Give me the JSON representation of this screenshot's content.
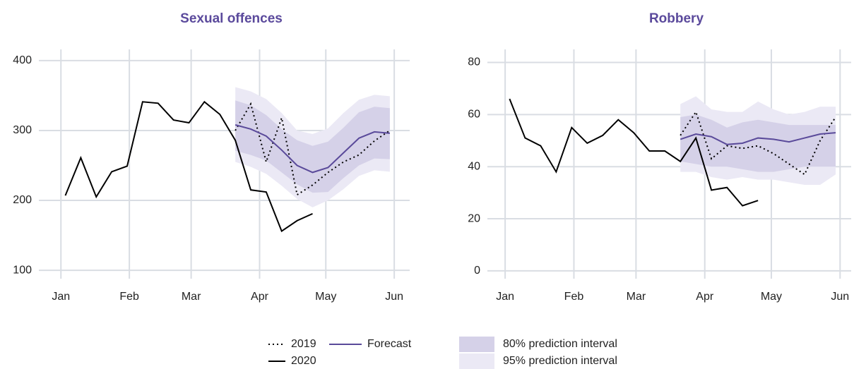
{
  "chart_data": [
    {
      "type": "line",
      "title": "Sexual offences",
      "xlim": [
        -9,
        159
      ],
      "xticks": [
        {
          "value": 1,
          "label": "Jan"
        },
        {
          "value": 32,
          "label": "Feb"
        },
        {
          "value": 60,
          "label": "Mar"
        },
        {
          "value": 91,
          "label": "Apr"
        },
        {
          "value": 121,
          "label": "May"
        },
        {
          "value": 152,
          "label": "Jun"
        }
      ],
      "ylim": [
        88,
        416
      ],
      "yticks": [
        100,
        200,
        300,
        400
      ],
      "grid": true,
      "bands": [
        {
          "name": "95% prediction interval",
          "color": "#ebe9f5",
          "x": [
            80,
            87,
            94,
            101,
            108,
            115,
            122,
            129,
            136,
            143,
            150
          ],
          "lower": [
            255,
            248,
            238,
            221,
            202,
            190,
            200,
            216,
            235,
            243,
            241
          ],
          "upper": [
            362,
            356,
            345,
            325,
            300,
            295,
            303,
            325,
            344,
            351,
            349
          ]
        },
        {
          "name": "80% prediction interval",
          "color": "#d5d1e8",
          "x": [
            80,
            87,
            94,
            101,
            108,
            115,
            122,
            129,
            136,
            143,
            150
          ],
          "lower": [
            271,
            265,
            257,
            240,
            223,
            211,
            212,
            232,
            250,
            260,
            259
          ],
          "upper": [
            343,
            336,
            322,
            302,
            286,
            278,
            284,
            304,
            326,
            334,
            332
          ]
        }
      ],
      "series": [
        {
          "name": "2019",
          "color": "#000000",
          "style": "dotted",
          "x": [
            80,
            87,
            94,
            101,
            108,
            115,
            122,
            129,
            136,
            143,
            150
          ],
          "values": [
            300,
            338,
            255,
            318,
            208,
            222,
            240,
            255,
            265,
            285,
            300
          ]
        },
        {
          "name": "2020",
          "color": "#000000",
          "style": "solid",
          "x": [
            3,
            10,
            17,
            24,
            31,
            38,
            45,
            52,
            59,
            66,
            73,
            80,
            87,
            94,
            101,
            108,
            115
          ],
          "values": [
            207,
            261,
            205,
            241,
            249,
            341,
            339,
            315,
            311,
            341,
            323,
            286,
            215,
            212,
            156,
            171,
            181
          ]
        },
        {
          "name": "Forecast",
          "color": "#5a4a9a",
          "style": "solid",
          "x": [
            80,
            87,
            94,
            101,
            108,
            115,
            122,
            129,
            136,
            143,
            150
          ],
          "values": [
            308,
            302,
            292,
            272,
            250,
            240,
            247,
            268,
            289,
            298,
            296
          ]
        }
      ]
    },
    {
      "type": "line",
      "title": "Robbery",
      "xlim": [
        -7,
        157
      ],
      "xticks": [
        {
          "value": 1,
          "label": "Jan"
        },
        {
          "value": 32,
          "label": "Feb"
        },
        {
          "value": 60,
          "label": "Mar"
        },
        {
          "value": 91,
          "label": "Apr"
        },
        {
          "value": 121,
          "label": "May"
        },
        {
          "value": 152,
          "label": "Jun"
        }
      ],
      "ylim": [
        -3,
        85
      ],
      "yticks": [
        0,
        20,
        40,
        60,
        80
      ],
      "grid": true,
      "bands": [
        {
          "name": "95% prediction interval",
          "color": "#ebe9f5",
          "x": [
            80,
            87,
            94,
            101,
            108,
            115,
            122,
            129,
            136,
            143,
            150
          ],
          "lower": [
            38,
            38,
            36,
            35,
            36,
            35,
            35,
            34,
            33,
            33,
            37
          ],
          "upper": [
            64,
            67,
            62,
            61,
            61,
            65,
            62,
            60,
            61,
            63,
            63
          ]
        },
        {
          "name": "80% prediction interval",
          "color": "#d5d1e8",
          "x": [
            80,
            87,
            94,
            101,
            108,
            115,
            122,
            129,
            136,
            143,
            150
          ],
          "lower": [
            42,
            41,
            40,
            40,
            39,
            38,
            38,
            39,
            40,
            40,
            40
          ],
          "upper": [
            59,
            60,
            58,
            55,
            57,
            58,
            57,
            56,
            56,
            56,
            56
          ]
        }
      ],
      "series": [
        {
          "name": "2019",
          "color": "#000000",
          "style": "dotted",
          "x": [
            80,
            87,
            94,
            101,
            108,
            115,
            122,
            129,
            136,
            143,
            150
          ],
          "values": [
            52,
            61,
            43,
            48,
            47,
            48,
            45,
            41,
            37,
            50,
            59
          ]
        },
        {
          "name": "2020",
          "color": "#000000",
          "style": "solid",
          "x": [
            3,
            10,
            17,
            24,
            31,
            38,
            45,
            52,
            59,
            66,
            73,
            80,
            87,
            94,
            101,
            108,
            115
          ],
          "values": [
            66,
            51,
            48,
            38,
            55,
            49,
            52,
            58,
            53,
            46,
            46,
            42,
            51,
            31,
            32,
            25,
            27
          ]
        },
        {
          "name": "Forecast",
          "color": "#5a4a9a",
          "style": "solid",
          "x": [
            80,
            87,
            94,
            101,
            108,
            115,
            122,
            129,
            136,
            143,
            150
          ],
          "values": [
            50.5,
            52.5,
            51.5,
            48.5,
            49,
            51,
            50.5,
            49.5,
            51,
            52.5,
            53
          ]
        }
      ]
    }
  ]
}
